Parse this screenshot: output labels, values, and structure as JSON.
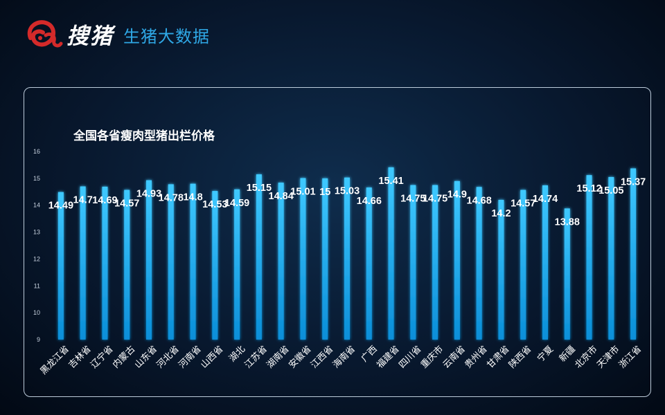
{
  "header": {
    "brand": "搜猪",
    "subtitle": "生猪大数据"
  },
  "colors": {
    "bar": "#1ab2ee",
    "bar_glow": "#0a7fd0",
    "brand_red": "#d42a2a",
    "subtitle": "#2fa8e6"
  },
  "chart_data": {
    "type": "bar",
    "title": "全国各省瘦肉型猪出栏价格",
    "categories": [
      "黑龙江省",
      "吉林省",
      "辽宁省",
      "内蒙古",
      "山东省",
      "河北省",
      "河南省",
      "山西省",
      "湖北",
      "江苏省",
      "湖南省",
      "安徽省",
      "江西省",
      "海南省",
      "广西",
      "福建省",
      "四川省",
      "重庆市",
      "云南省",
      "贵州省",
      "甘肃省",
      "陕西省",
      "宁夏",
      "新疆",
      "北京市",
      "天津市",
      "浙江省"
    ],
    "values": [
      14.49,
      14.7,
      14.69,
      14.57,
      14.93,
      14.78,
      14.8,
      14.53,
      14.59,
      15.15,
      14.84,
      15.01,
      15,
      15.03,
      14.66,
      15.41,
      14.75,
      14.75,
      14.9,
      14.68,
      14.2,
      14.57,
      14.74,
      13.88,
      15.12,
      15.05,
      15.37
    ],
    "data_labels": [
      "14.49",
      "14.7",
      "14.69",
      "14.57",
      "14.93",
      "14.78",
      "14.8",
      "14.53",
      "14.59",
      "15.15",
      "14.84",
      "15.01",
      "15",
      "15.03",
      "14.66",
      "15.41",
      "14.75",
      "14.75",
      "14.9",
      "14.68",
      "14.2",
      "14.57",
      "14.74",
      "13.88",
      "15.12",
      "15.05",
      "15.37"
    ],
    "yticks": [
      "9",
      "10",
      "11",
      "12",
      "13",
      "14",
      "15",
      "16"
    ],
    "ylim": [
      9,
      16
    ],
    "xlabel": "",
    "ylabel": "",
    "grid": false,
    "legend": "none"
  }
}
